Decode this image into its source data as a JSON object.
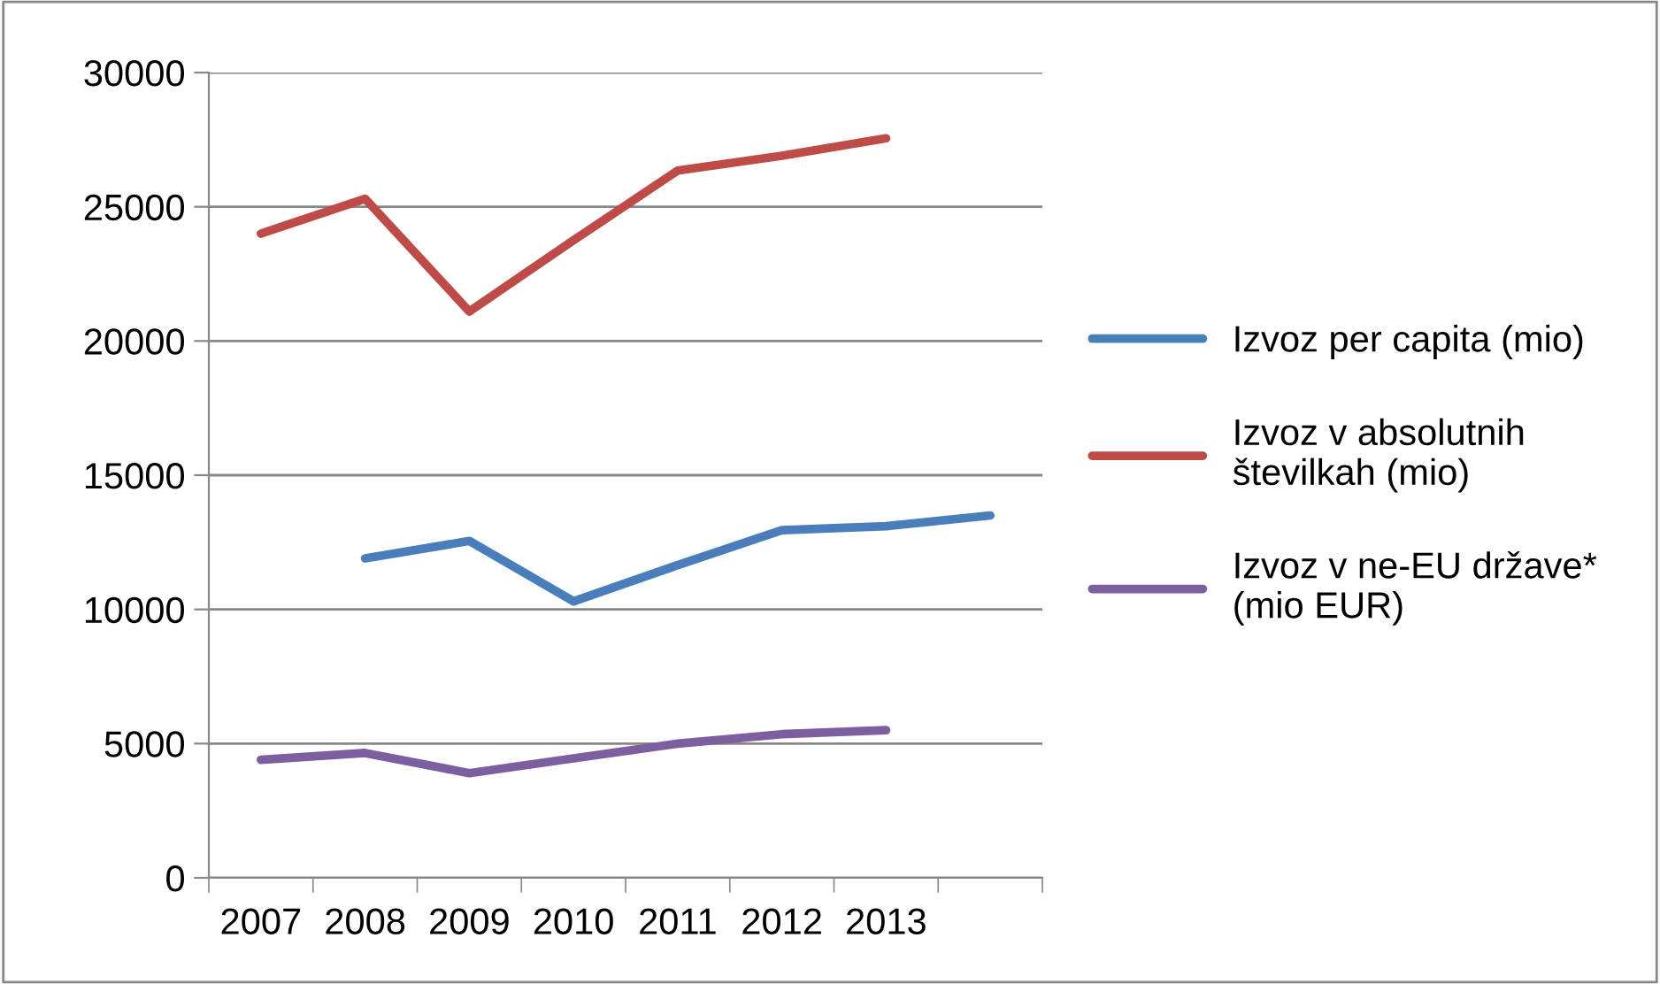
{
  "chart_data": {
    "type": "line",
    "categories": [
      "2007",
      "2008",
      "2009",
      "2010",
      "2011",
      "2012",
      "2013",
      null
    ],
    "series": [
      {
        "name": "Izvoz per capita (mio)",
        "color": "#4a7ebb",
        "values": [
          null,
          11900,
          12550,
          10300,
          11650,
          12950,
          13100,
          13500
        ]
      },
      {
        "name": "Izvoz v absolutnih\nštevilkah (mio)",
        "color": "#be4b48",
        "values": [
          24000,
          25300,
          21100,
          23750,
          26350,
          26900,
          27550,
          null
        ]
      },
      {
        "name": "Izvoz v ne-EU države*\n(mio EUR)",
        "color": "#7d5fa0",
        "values": [
          4400,
          4650,
          3900,
          4450,
          5000,
          5350,
          5500,
          null
        ]
      }
    ],
    "ylim": [
      0,
      30000
    ],
    "yticks": [
      0,
      5000,
      10000,
      15000,
      20000,
      25000,
      30000
    ],
    "grid": "y",
    "legend": "right",
    "marker": "none",
    "line_style": "solid"
  }
}
